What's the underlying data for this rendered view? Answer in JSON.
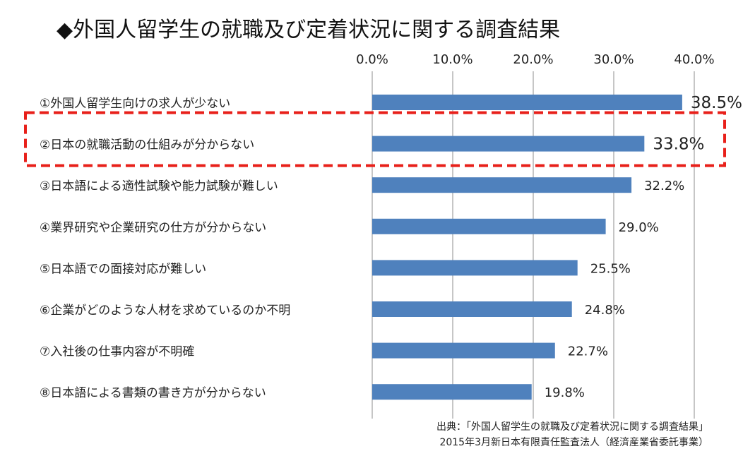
{
  "chart_data": {
    "type": "bar",
    "orientation": "horizontal",
    "title": "◆外国人留学生の就職及び定着状況に関する調査結果",
    "categories": [
      "①外国人留学生向けの求人が少ない",
      "②日本の就職活動の仕組みが分からない",
      "③日本語による適性試験や能力試験が難しい",
      "④業界研究や企業研究の仕方が分からない",
      "⑤日本語での面接対応が難しい",
      "⑥企業がどのような人材を求めているのか不明",
      "⑦入社後の仕事内容が不明確",
      "⑧日本語による書類の書き方が分からない"
    ],
    "values": [
      38.5,
      33.8,
      32.2,
      29.0,
      25.5,
      24.8,
      22.7,
      19.8
    ],
    "value_labels": [
      "38.5%",
      "33.8%",
      "32.2%",
      "29.0%",
      "25.5%",
      "24.8%",
      "22.7%",
      "19.8%"
    ],
    "xlim": [
      0,
      40
    ],
    "xticks": [
      0,
      10,
      20,
      30,
      40
    ],
    "xtick_labels": [
      "0.0%",
      "10.0%",
      "20.0%",
      "30.0%",
      "40.0%"
    ],
    "axis_position": "top",
    "grid": true,
    "legend": "none",
    "bar_color": "#4f81bd",
    "highlight_color": "#e8201a",
    "highlight_index": 1,
    "source": [
      "出典：「外国人留学生の就職及び定着状況に関する調査結果」",
      "2015年3月新日本有限責任監査法人（経済産業省委託事業）"
    ]
  }
}
